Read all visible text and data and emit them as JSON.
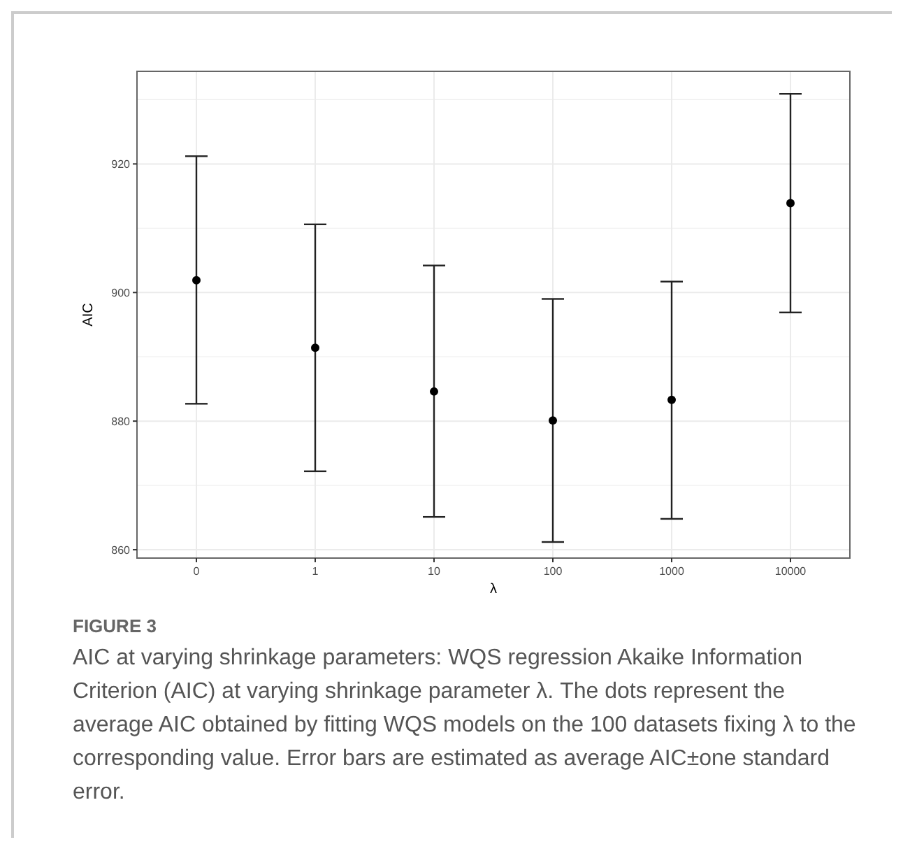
{
  "chart_data": {
    "type": "scatter",
    "title": "FIGURE 3",
    "xlabel": "λ",
    "ylabel": "AIC",
    "categories": [
      "0",
      "1",
      "10",
      "100",
      "1000",
      "10000"
    ],
    "values": [
      901.9,
      891.4,
      884.6,
      880.1,
      883.3,
      913.9
    ],
    "errors": [
      [
        882.7,
        921.2
      ],
      [
        872.2,
        910.6
      ],
      [
        865.1,
        904.2
      ],
      [
        861.2,
        899.0
      ],
      [
        864.8,
        901.7
      ],
      [
        896.9,
        930.9
      ]
    ],
    "color": "#000000",
    "marker": "circle",
    "grid": true,
    "ylim": [
      858.7,
      934.4
    ],
    "yticks": [
      860,
      880,
      900,
      920
    ],
    "annotations": [
      "AIC at varying shrinkage parameters: WQS regression Akaike Information Criterion (AIC) at varying shrinkage parameter λ. The dots represent the average AIC obtained by fitting WQS models on the 100 datasets fixing λ to the corresponding value. Error bars are estimated as average AIC±one standard error."
    ]
  }
}
